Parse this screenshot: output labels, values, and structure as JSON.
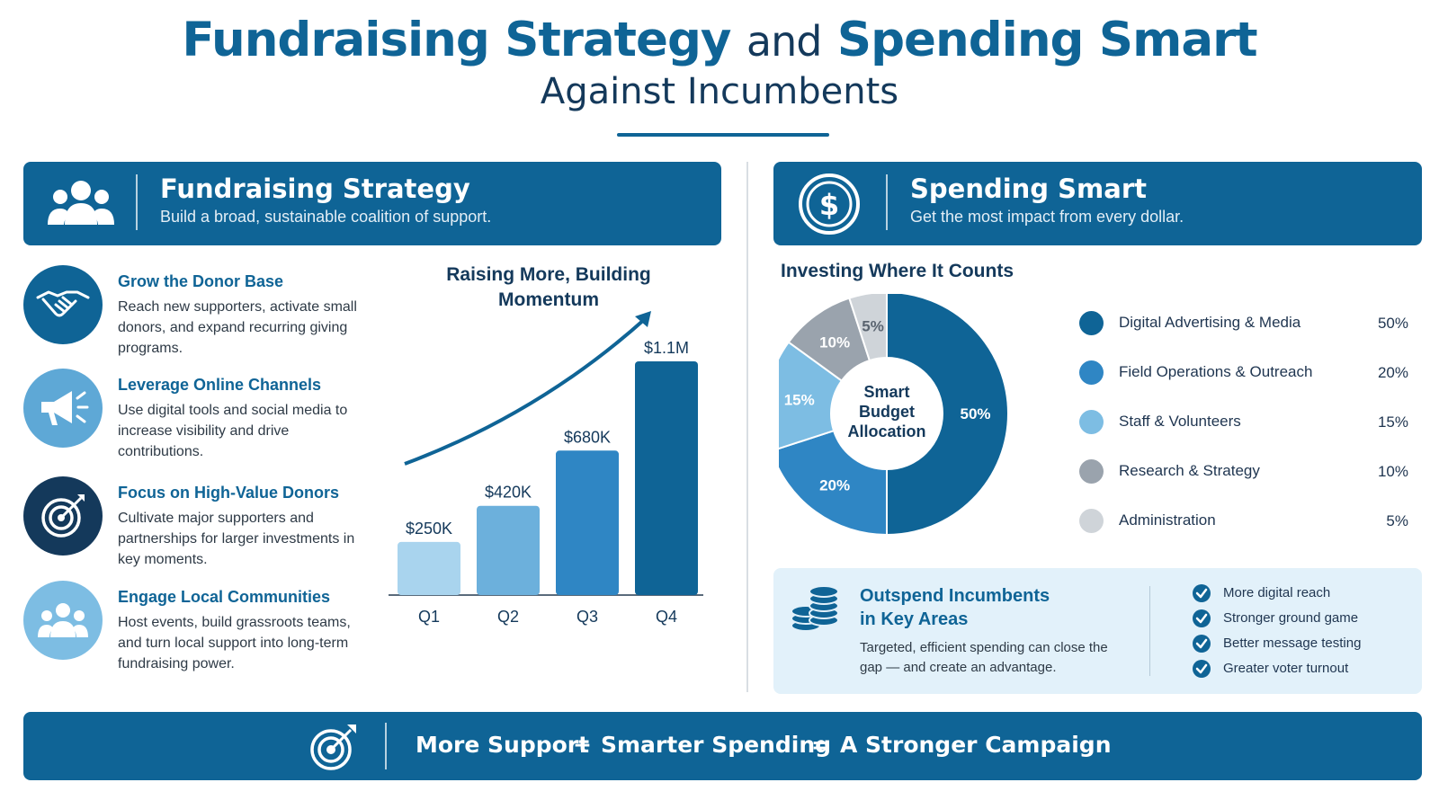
{
  "header": {
    "title_part1": "Fundraising Strategy",
    "title_and": "and",
    "title_part2": "Spending Smart",
    "subtitle": "Against Incumbents"
  },
  "fundraising": {
    "banner_title": "Fundraising Strategy",
    "banner_subtitle": "Build a broad, sustainable coalition of support.",
    "banner_icon": "people-group-icon",
    "items": [
      {
        "title": "Grow the Donor Base",
        "desc": "Reach new supporters, activate small donors, and expand recurring giving programs.",
        "icon": "handshake-icon",
        "color": "#0f6496"
      },
      {
        "title": "Leverage Online Channels",
        "desc": "Use digital tools and social media to increase visibility and drive contributions.",
        "icon": "megaphone-icon",
        "color": "#5ea8d6"
      },
      {
        "title": "Focus on High-Value Donors",
        "desc": "Cultivate major supporters and partnerships for larger investments in key moments.",
        "icon": "target-icon",
        "color": "#14395b"
      },
      {
        "title": "Engage Local Communities",
        "desc": "Host events, build grassroots teams, and turn local support into long-term fundraising power.",
        "icon": "community-icon",
        "color": "#7dbde3"
      }
    ]
  },
  "spending": {
    "banner_title": "Spending Smart",
    "banner_subtitle": "Get the most impact from every dollar.",
    "banner_icon": "dollar-coin-icon"
  },
  "chart_data": [
    {
      "type": "bar",
      "title": "Raising More, Building Momentum",
      "categories": [
        "Q1",
        "Q2",
        "Q3",
        "Q4"
      ],
      "values": [
        250,
        420,
        680,
        1100
      ],
      "value_labels": [
        "$250K",
        "$420K",
        "$680K",
        "$1.1M"
      ],
      "unit": "thousand USD",
      "colors": [
        "#a9d4ee",
        "#6cb0dc",
        "#2f86c4",
        "#0f6496"
      ],
      "trend_arrow": true
    },
    {
      "type": "pie",
      "title": "Investing Where It Counts",
      "center_label": "Smart Budget Allocation",
      "categories": [
        "Digital Advertising & Media",
        "Field Operations & Outreach",
        "Staff & Volunteers",
        "Research & Strategy",
        "Administration"
      ],
      "values": [
        50,
        20,
        15,
        10,
        5
      ],
      "value_labels": [
        "50%",
        "20%",
        "15%",
        "10%",
        "5%"
      ],
      "colors": [
        "#0f6496",
        "#2f86c4",
        "#7dbde3",
        "#9aa3ad",
        "#cfd4d9"
      ],
      "legend_position": "right"
    }
  ],
  "outspend": {
    "title_line1": "Outspend Incumbents",
    "title_line2": "in Key Areas",
    "desc": "Targeted, efficient spending can close the gap — and create an advantage.",
    "icon": "coin-stack-icon",
    "checks": [
      "More digital reach",
      "Stronger ground game",
      "Better message testing",
      "Greater voter turnout"
    ]
  },
  "bottom": {
    "icon": "target-icon",
    "part1": "More Support",
    "plus": "+",
    "part2": "Smarter Spending",
    "equals": "=",
    "part3": "A Stronger Campaign"
  }
}
